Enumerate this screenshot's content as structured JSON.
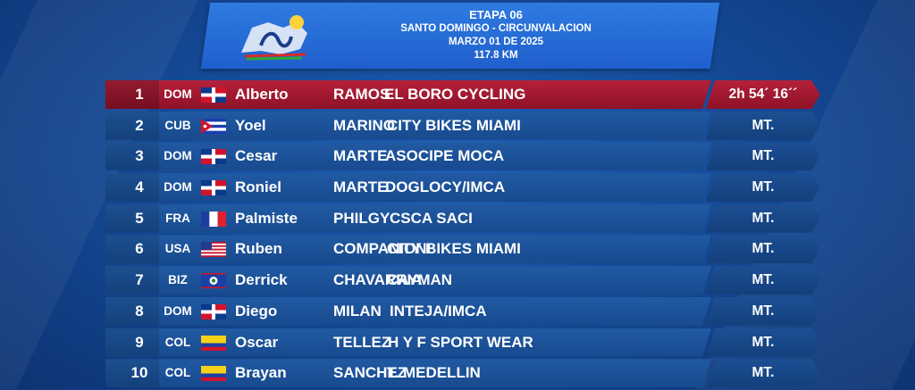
{
  "header": {
    "stage": "ETAPA 06",
    "route": "SANTO DOMINGO - CIRCUNVALACION",
    "date": "MARZO 01 DE 2025",
    "distance": "117.8 KM"
  },
  "colors": {
    "accent_red": "#b5213a",
    "row_blue": "#1d54a0",
    "header_blue": "#2a6fdc"
  },
  "results": [
    {
      "pos": "1",
      "cc": "DOM",
      "flag": "dom-flag-icon",
      "first": "Alberto",
      "last": "RAMOS",
      "team": "EL BORO CYCLING",
      "time": "2h 54´ 16´´"
    },
    {
      "pos": "2",
      "cc": "CUB",
      "flag": "cub-flag-icon",
      "first": "Yoel",
      "last": "MARINO",
      "team": "CITY BIKES MIAMI",
      "time": "MT."
    },
    {
      "pos": "3",
      "cc": "DOM",
      "flag": "dom-flag-icon",
      "first": "Cesar",
      "last": "MARTE",
      "team": "ASOCIPE MOCA",
      "time": "MT."
    },
    {
      "pos": "4",
      "cc": "DOM",
      "flag": "dom-flag-icon",
      "first": "Roniel",
      "last": "MARTE",
      "team": "DOGLOCY/IMCA",
      "time": "MT."
    },
    {
      "pos": "5",
      "cc": "FRA",
      "flag": "fra-flag-icon",
      "first": "Palmiste",
      "last": "PHILGY",
      "team": "CSCA SACI",
      "time": "MT."
    },
    {
      "pos": "6",
      "cc": "USA",
      "flag": "usa-flag-icon",
      "first": "Ruben",
      "last": "COMPANIONI",
      "team": "CITY BIKES MIAMI",
      "time": "MT."
    },
    {
      "pos": "7",
      "cc": "BIZ",
      "flag": "biz-flag-icon",
      "first": "Derrick",
      "last": "CHAVARRIA",
      "team": "CAYMAN",
      "time": "MT."
    },
    {
      "pos": "8",
      "cc": "DOM",
      "flag": "dom-flag-icon",
      "first": "Diego",
      "last": "MILAN",
      "team": "INTEJA/IMCA",
      "time": "MT."
    },
    {
      "pos": "9",
      "cc": "COL",
      "flag": "col-flag-icon",
      "first": "Oscar",
      "last": "TELLEZ",
      "team": "H Y F SPORT WEAR",
      "time": "MT."
    },
    {
      "pos": "10",
      "cc": "COL",
      "flag": "col-flag-icon",
      "first": "Brayan",
      "last": "SANCHEZ",
      "team": "T. MEDELLIN",
      "time": "MT."
    }
  ]
}
